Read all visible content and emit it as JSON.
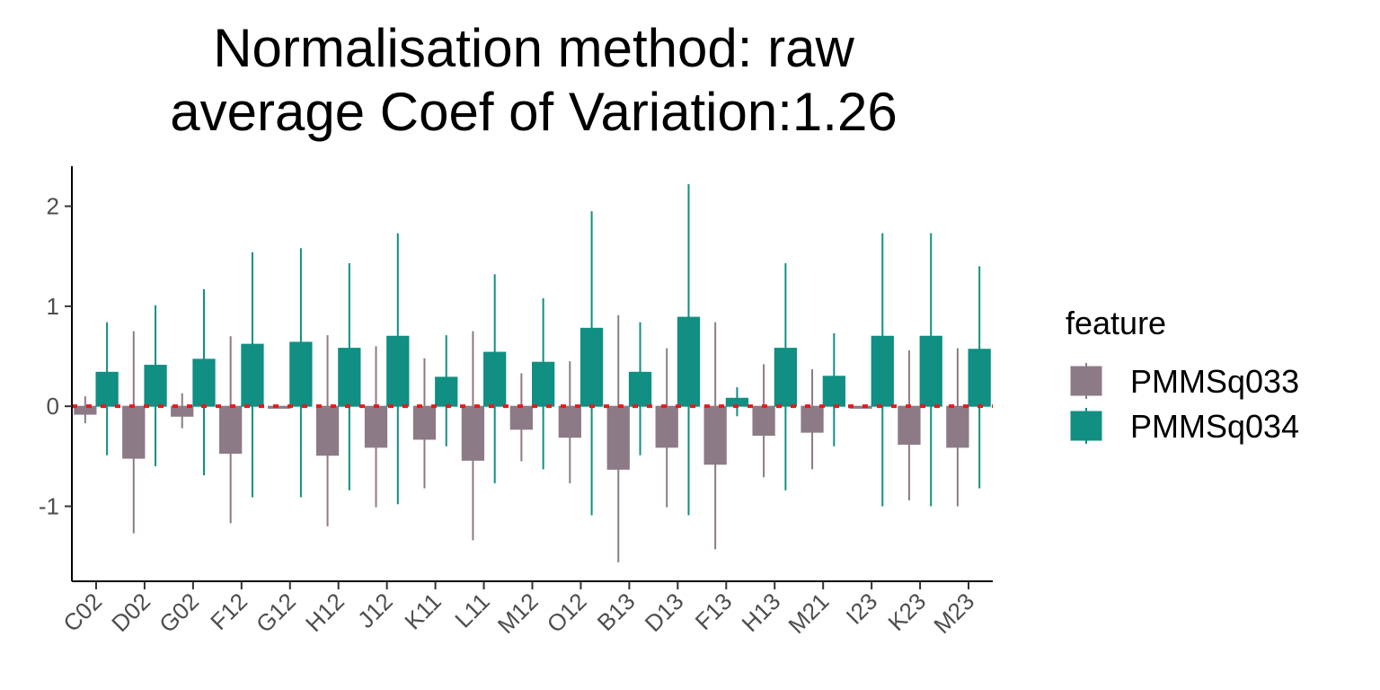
{
  "chart_data": {
    "type": "bar",
    "title": "Normalisation method: raw",
    "subtitle": "average Coef of Variation:1.26",
    "xlabel": "",
    "ylabel": "",
    "ylim": [
      -1.75,
      2.4
    ],
    "yticks": [
      -1,
      0,
      1,
      2
    ],
    "grid": false,
    "legend_title": "feature",
    "legend_position": "right",
    "reference_line": {
      "y": 0,
      "color": "#e41a1c",
      "style": "dotted"
    },
    "categories": [
      "C02",
      "D02",
      "G02",
      "F12",
      "G12",
      "H12",
      "J12",
      "K11",
      "L11",
      "M12",
      "O12",
      "B13",
      "D13",
      "F13",
      "H13",
      "M21",
      "I23",
      "K23",
      "M23"
    ],
    "series": [
      {
        "name": "PMMSq033",
        "color": "#8c7b86",
        "values": [
          -0.08,
          -0.52,
          -0.1,
          -0.47,
          -0.02,
          -0.49,
          -0.41,
          -0.33,
          -0.54,
          -0.23,
          -0.31,
          -0.63,
          -0.41,
          -0.58,
          -0.29,
          -0.26,
          -0.02,
          -0.38,
          -0.41
        ],
        "err_low": [
          -0.17,
          -1.27,
          -0.22,
          -1.17,
          -0.02,
          -1.2,
          -1.01,
          -0.82,
          -1.34,
          -0.55,
          -0.77,
          -1.56,
          -1.01,
          -1.43,
          -0.71,
          -0.63,
          -0.02,
          -0.94,
          -1.0
        ],
        "err_high": [
          0.1,
          0.75,
          0.13,
          0.7,
          -0.02,
          0.71,
          0.6,
          0.48,
          0.75,
          0.33,
          0.45,
          0.91,
          0.58,
          0.84,
          0.42,
          0.37,
          -0.02,
          0.56,
          0.58
        ]
      },
      {
        "name": "PMMSq034",
        "color": "#108f82",
        "values": [
          0.34,
          0.41,
          0.47,
          0.62,
          0.64,
          0.58,
          0.7,
          0.29,
          0.54,
          0.44,
          0.78,
          0.34,
          0.89,
          0.08,
          0.58,
          0.3,
          0.7,
          0.7,
          0.57
        ],
        "err_low": [
          -0.49,
          -0.6,
          -0.69,
          -0.91,
          -0.91,
          -0.84,
          -0.98,
          -0.4,
          -0.77,
          -0.63,
          -1.09,
          -0.49,
          -1.09,
          -0.1,
          -0.84,
          -0.4,
          -1.0,
          -1.0,
          -0.82
        ],
        "err_high": [
          0.84,
          1.01,
          1.17,
          1.54,
          1.58,
          1.43,
          1.73,
          0.71,
          1.32,
          1.08,
          1.95,
          0.84,
          2.22,
          0.19,
          1.43,
          0.73,
          1.73,
          1.73,
          1.4
        ]
      }
    ]
  }
}
